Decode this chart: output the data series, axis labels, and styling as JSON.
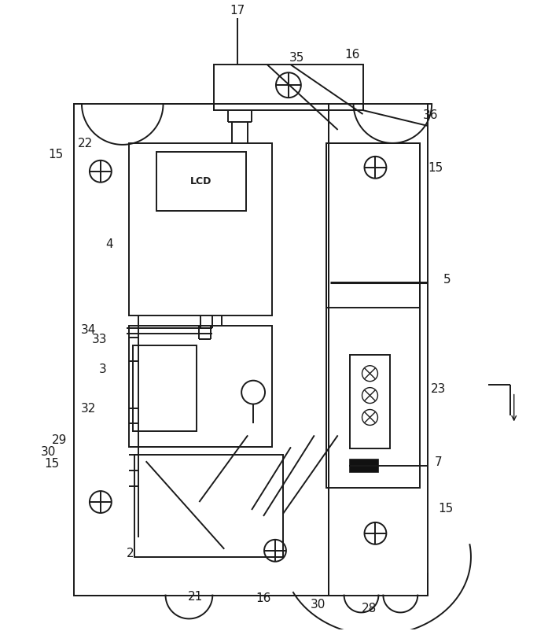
{
  "bg_color": "#ffffff",
  "line_color": "#1a1a1a",
  "lw_main": 1.4,
  "lw_thin": 1.0,
  "lw_thick": 2.2,
  "fig_width": 6.83,
  "fig_height": 8.03
}
